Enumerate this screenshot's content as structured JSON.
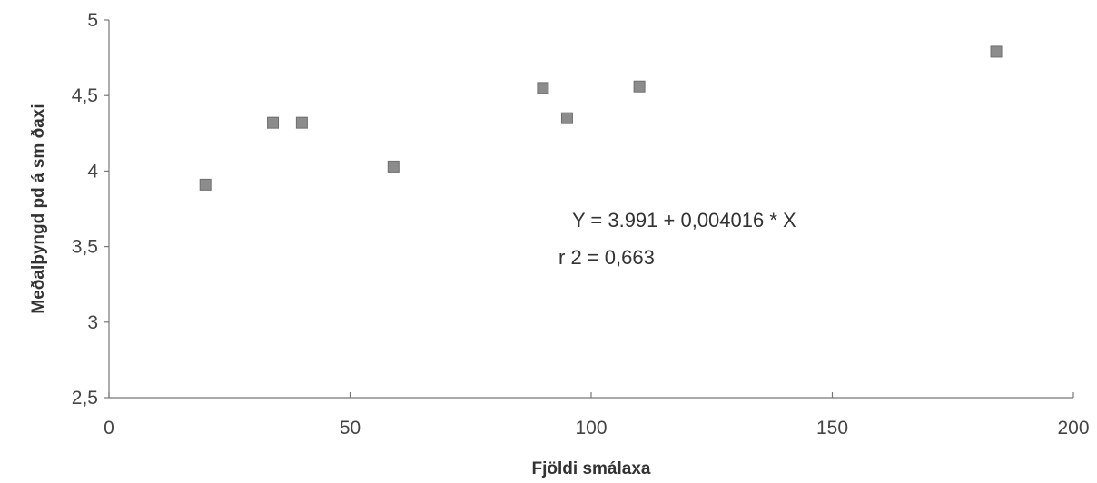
{
  "chart_data": {
    "type": "scatter",
    "title": "",
    "xlabel": "Fjöldi smálaxa",
    "ylabel": "Meðalþyngd pd á sm ðaxi",
    "xlim": [
      0,
      200
    ],
    "ylim": [
      2.5,
      5
    ],
    "x_ticks": [
      "0",
      "50",
      "100",
      "150",
      "200"
    ],
    "y_ticks": [
      "2,5",
      "3",
      "3,5",
      "4",
      "4,5",
      "5"
    ],
    "grid": false,
    "legend": "none",
    "series": [
      {
        "marker": "square",
        "color": "#8c8c8c",
        "x": [
          20,
          34,
          40,
          59,
          90,
          95,
          110,
          184
        ],
        "y": [
          3.91,
          4.32,
          4.32,
          4.03,
          4.55,
          4.35,
          4.56,
          4.79
        ]
      }
    ],
    "annotations": [
      "Y = 3.991 + 0,004016 * X",
      "r 2 = 0,663"
    ]
  }
}
